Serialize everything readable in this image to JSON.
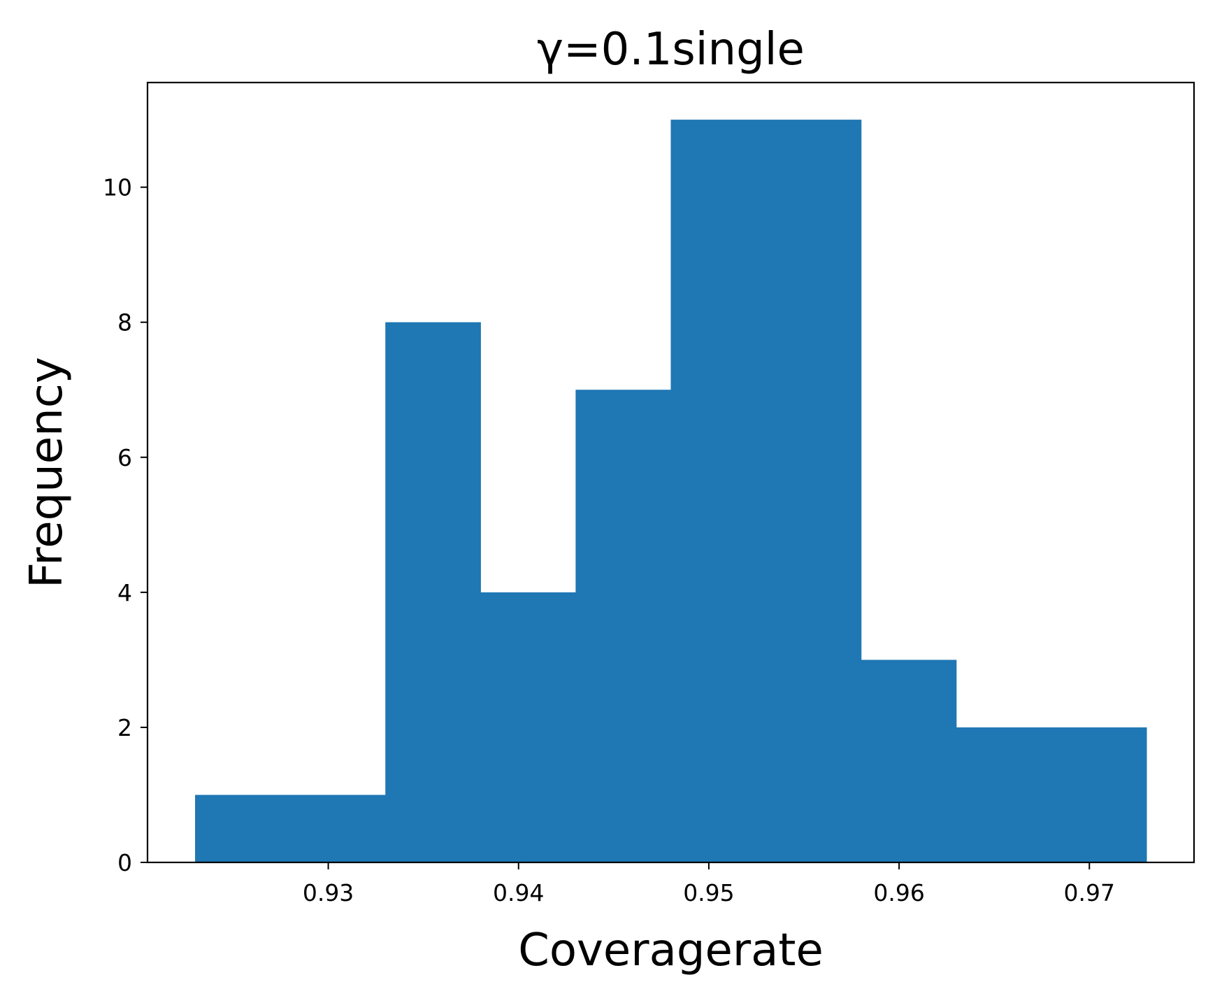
{
  "chart_data": {
    "type": "bar",
    "title": "γ=0.1single",
    "xlabel": "Coveragerate",
    "ylabel": "Frequency",
    "bin_edges": [
      0.923,
      0.928,
      0.933,
      0.938,
      0.943,
      0.948,
      0.953,
      0.958,
      0.963,
      0.968,
      0.973
    ],
    "values": [
      1,
      1,
      8,
      4,
      7,
      11,
      11,
      3,
      2,
      2
    ],
    "xlim": [
      0.9205,
      0.9755
    ],
    "ylim": [
      0,
      11.55
    ],
    "xticks": [
      0.93,
      0.94,
      0.95,
      0.96,
      0.97
    ],
    "xtick_labels": [
      "0.93",
      "0.94",
      "0.95",
      "0.96",
      "0.97"
    ],
    "yticks": [
      0,
      2,
      4,
      6,
      8,
      10
    ],
    "ytick_labels": [
      "0",
      "2",
      "4",
      "6",
      "8",
      "10"
    ],
    "bar_color": "#1f77b4",
    "grid": false,
    "legend": "none"
  }
}
